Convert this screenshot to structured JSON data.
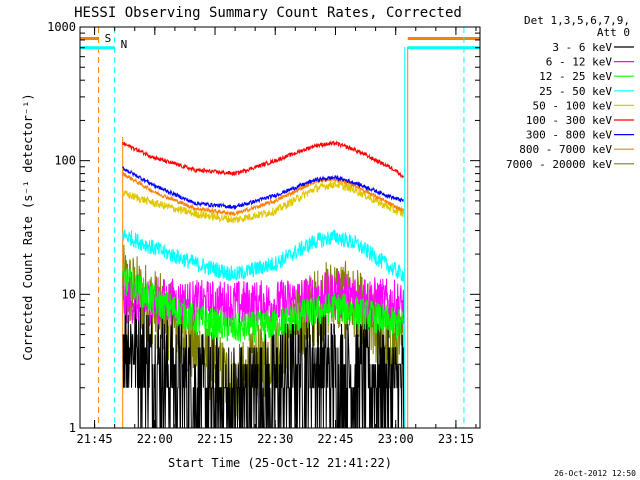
{
  "chart_data": {
    "type": "line",
    "title": "HESSI Observing Summary Count Rates, Corrected",
    "xlabel": "Start Time (25-Oct-12 21:41:22)",
    "ylabel": "Corrected Count Rate (s⁻¹ detector⁻¹)",
    "yscale": "log",
    "ylim": [
      1,
      1000
    ],
    "xlim_minutes": [
      "21:41",
      "23:21"
    ],
    "x_ticks": [
      "21:45",
      "22:00",
      "22:15",
      "22:30",
      "22:45",
      "23:00",
      "23:15"
    ],
    "y_ticks": [
      "1",
      "10",
      "100",
      "1000"
    ],
    "legend_header": [
      "Det 1,3,5,6,7,9,",
      "Att 0"
    ],
    "footer": "26-Oct-2012 12:50",
    "markers": [
      {
        "label": "S",
        "time": "21:46",
        "color": "#ff8000"
      },
      {
        "label": "N",
        "time": "21:50",
        "color": "#00ffff"
      }
    ],
    "data_window": {
      "start": "21:52",
      "end": "23:02"
    },
    "x": [
      "21:52",
      "22:00",
      "22:10",
      "22:20",
      "22:30",
      "22:40",
      "22:45",
      "22:50",
      "23:00",
      "23:02"
    ],
    "series": [
      {
        "name": "3 - 6 keV",
        "color": "#000000",
        "values": [
          5,
          3,
          2,
          1.5,
          2,
          3,
          2.5,
          2.5,
          2,
          2
        ]
      },
      {
        "name": "6 - 12 keV",
        "color": "#ff00ff",
        "values": [
          9,
          9,
          8.5,
          8.5,
          8.5,
          9.5,
          10,
          9.5,
          8.5,
          8
        ]
      },
      {
        "name": "12 - 25 keV",
        "color": "#00ff00",
        "values": [
          13,
          9,
          6.5,
          5.5,
          6,
          7.5,
          8,
          7.5,
          6,
          6
        ]
      },
      {
        "name": "25 - 50 keV",
        "color": "#00ffff",
        "values": [
          28,
          22,
          17,
          14,
          17,
          25,
          27,
          24,
          15,
          14
        ]
      },
      {
        "name": "50 - 100 keV",
        "color": "#e0c800",
        "values": [
          57,
          48,
          40,
          36,
          42,
          62,
          67,
          60,
          42,
          40
        ]
      },
      {
        "name": "100 - 300 keV",
        "color": "#ff0000",
        "values": [
          135,
          105,
          85,
          80,
          100,
          130,
          135,
          120,
          85,
          75
        ]
      },
      {
        "name": "300 - 800 keV",
        "color": "#0000ff",
        "values": [
          88,
          65,
          48,
          45,
          55,
          72,
          75,
          68,
          52,
          50
        ]
      },
      {
        "name": "800 - 7000 keV",
        "color": "#ff8000",
        "values": [
          80,
          58,
          44,
          40,
          50,
          70,
          73,
          65,
          45,
          42
        ]
      },
      {
        "name": "7000 - 20000 keV",
        "color": "#808000",
        "values": [
          12,
          8,
          4,
          2,
          4,
          8,
          10,
          8,
          4,
          4
        ]
      }
    ]
  }
}
